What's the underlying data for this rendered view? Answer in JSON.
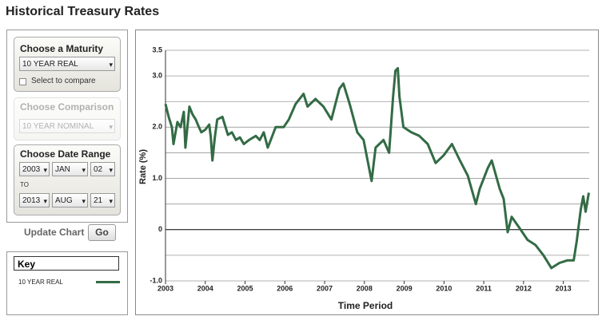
{
  "header": {
    "title": "Historical Treasury Rates"
  },
  "controls": {
    "maturity": {
      "title": "Choose a Maturity",
      "selected": "10 YEAR REAL",
      "compare_label": "Select to compare"
    },
    "comparison": {
      "title": "Choose Comparison",
      "selected": "10 YEAR NOMINAL"
    },
    "date_range": {
      "title": "Choose Date Range",
      "start": {
        "year": "2003",
        "month": "JAN",
        "day": "02"
      },
      "separator": "TO",
      "end": {
        "year": "2013",
        "month": "AUG",
        "day": "21"
      }
    },
    "update": {
      "label": "Update Chart",
      "button": "Go"
    }
  },
  "key": {
    "title": "Key"
  },
  "chart_data": {
    "type": "line",
    "xlabel": "Time Period",
    "ylabel": "Rate (%)",
    "x": [
      2003.0,
      2003.08,
      2003.16,
      2003.2,
      2003.3,
      2003.38,
      2003.46,
      2003.5,
      2003.6,
      2003.68,
      2003.76,
      2003.84,
      2003.9,
      2004.0,
      2004.1,
      2004.14,
      2004.18,
      2004.24,
      2004.3,
      2004.43,
      2004.57,
      2004.67,
      2004.77,
      2004.87,
      2004.97,
      2005.1,
      2005.27,
      2005.37,
      2005.47,
      2005.57,
      2005.67,
      2005.77,
      2005.97,
      2006.1,
      2006.27,
      2006.47,
      2006.57,
      2006.77,
      2006.97,
      2007.17,
      2007.37,
      2007.47,
      2007.63,
      2007.82,
      2007.98,
      2008.08,
      2008.18,
      2008.28,
      2008.48,
      2008.62,
      2008.72,
      2008.78,
      2008.84,
      2008.88,
      2008.98,
      2009.18,
      2009.38,
      2009.59,
      2009.79,
      2009.99,
      2010.2,
      2010.4,
      2010.6,
      2010.8,
      2010.9,
      2011.1,
      2011.2,
      2011.4,
      2011.5,
      2011.6,
      2011.7,
      2011.9,
      2012.1,
      2012.3,
      2012.5,
      2012.7,
      2012.9,
      2013.1,
      2013.26,
      2013.34,
      2013.44,
      2013.5,
      2013.56,
      2013.64
    ],
    "series": [
      {
        "name": "10 YEAR REAL",
        "color": "#336b45",
        "values": [
          2.45,
          2.2,
          2.0,
          1.67,
          2.1,
          2.0,
          2.3,
          1.6,
          2.4,
          2.25,
          2.15,
          2.0,
          1.9,
          1.95,
          2.05,
          1.8,
          1.35,
          1.8,
          2.15,
          2.2,
          1.85,
          1.9,
          1.75,
          1.8,
          1.67,
          1.75,
          1.83,
          1.75,
          1.9,
          1.6,
          1.8,
          2.0,
          2.0,
          2.15,
          2.45,
          2.65,
          2.4,
          2.55,
          2.4,
          2.15,
          2.75,
          2.85,
          2.45,
          1.9,
          1.75,
          1.35,
          0.95,
          1.6,
          1.75,
          1.5,
          2.6,
          3.1,
          3.15,
          2.6,
          2.0,
          1.9,
          1.83,
          1.67,
          1.3,
          1.45,
          1.67,
          1.35,
          1.05,
          0.5,
          0.8,
          1.2,
          1.35,
          0.8,
          0.6,
          -0.05,
          0.25,
          0.03,
          -0.2,
          -0.3,
          -0.5,
          -0.75,
          -0.65,
          -0.6,
          -0.6,
          -0.2,
          0.4,
          0.65,
          0.35,
          0.72
        ]
      }
    ],
    "xlim": [
      2003,
      2013.65
    ],
    "xticks": [
      2003,
      2004,
      2005,
      2006,
      2007,
      2008,
      2009,
      2010,
      2011,
      2012,
      2013
    ],
    "ylim": [
      -1.0,
      3.5
    ],
    "yticks": [
      {
        "value": 3.5,
        "label": "3.5"
      },
      {
        "value": 3,
        "label": "3.0"
      },
      {
        "value": 2,
        "label": "2.0"
      },
      {
        "value": 1,
        "label": "1.0"
      },
      0,
      {
        "value": -1,
        "label": "-1.0"
      }
    ],
    "minor_yticks": [
      2.5,
      1.5,
      0.5,
      -0.5
    ],
    "grid": true
  }
}
